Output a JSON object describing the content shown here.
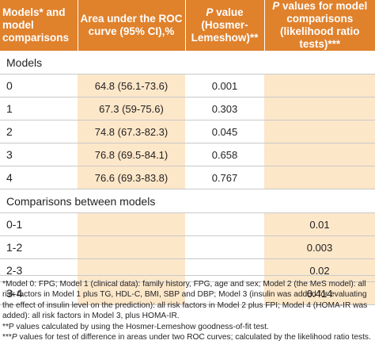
{
  "header": {
    "col0": "Models* and model comparisons",
    "col1": "Area under the ROC curve (95% CI),%",
    "col2_italic": "P",
    "col2_rest": " value (Hosmer-Lemeshow)**",
    "col3_italic": "P",
    "col3_rest": " values for model comparisons (likelihood ratio tests)***"
  },
  "section_models": "Models",
  "models": [
    {
      "label": "0",
      "auc": "64.8 (56.1-73.6)",
      "p": "0.001",
      "lr": ""
    },
    {
      "label": "1",
      "auc": "67.3 (59-75.6)",
      "p": "0.303",
      "lr": ""
    },
    {
      "label": "2",
      "auc": "74.8 (67.3-82.3)",
      "p": "0.045",
      "lr": ""
    },
    {
      "label": "3",
      "auc": "76.8 (69.5-84.1)",
      "p": "0.658",
      "lr": ""
    },
    {
      "label": "4",
      "auc": "76.6 (69.3-83.8)",
      "p": "0.767",
      "lr": ""
    }
  ],
  "section_comparisons": "Comparisons between models",
  "comparisons": [
    {
      "label": "0-1",
      "auc": "",
      "p": "",
      "lr": "0.01"
    },
    {
      "label": "1-2",
      "auc": "",
      "p": "",
      "lr": "0.003"
    },
    {
      "label": "2-3",
      "auc": "",
      "p": "",
      "lr": "0.02"
    },
    {
      "label": "3-4",
      "auc": "",
      "p": "",
      "lr": "0.414"
    }
  ],
  "notes": {
    "n1": "*Model 0: FPG; Model 1 (clinical data): family history, FPG, age and sex; Model 2 (the MeS model): all risk factors in Model 1 plus TG, HDL-C, BMI, SBP and DBP; Model 3 (insulin was added for evaluating the effect of insulin level on the prediction): all risk factors in Model 2 plus FPI; Model 4 (HOMA-IR was added): all risk factors in Model 3, plus HOMA-IR.",
    "n2": "**P values calculated by using the Hosmer-Lemeshow goodness-of-fit test.",
    "n3_prefix": "***",
    "n3_italic": "P",
    "n3_rest": " values for test of difference in areas under two ROC curves; calculated by the likelihood ratio tests."
  },
  "colors": {
    "header_bg": "#e0812c",
    "shade": "#fce7c9",
    "rule": "#c9c9c9"
  }
}
